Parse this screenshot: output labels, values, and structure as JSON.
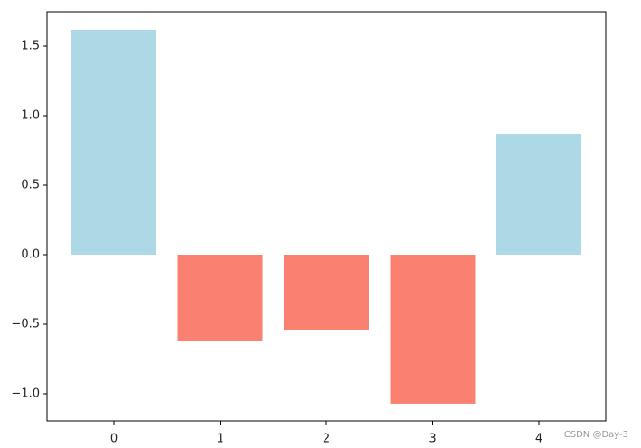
{
  "chart_data": {
    "type": "bar",
    "x": [
      0,
      1,
      2,
      3,
      4
    ],
    "values": [
      1.617,
      -0.623,
      -0.539,
      -1.071,
      0.87
    ],
    "colors": [
      "lightblue",
      "salmon",
      "salmon",
      "salmon",
      "lightblue"
    ],
    "xlim": [
      -0.63,
      4.63
    ],
    "xticks": [
      0,
      1,
      2,
      3,
      4
    ],
    "ylim": [
      -1.195,
      1.747
    ],
    "yticks": [
      {
        "value": -1.0,
        "label": "−1.0"
      },
      {
        "value": -0.5,
        "label": "−0.5"
      },
      {
        "value": 0,
        "label": "0.0"
      },
      0.5,
      {
        "value": 1.0,
        "label": "1.0"
      },
      1.5
    ],
    "grid": false
  },
  "watermark": "CSDN @Day-3"
}
